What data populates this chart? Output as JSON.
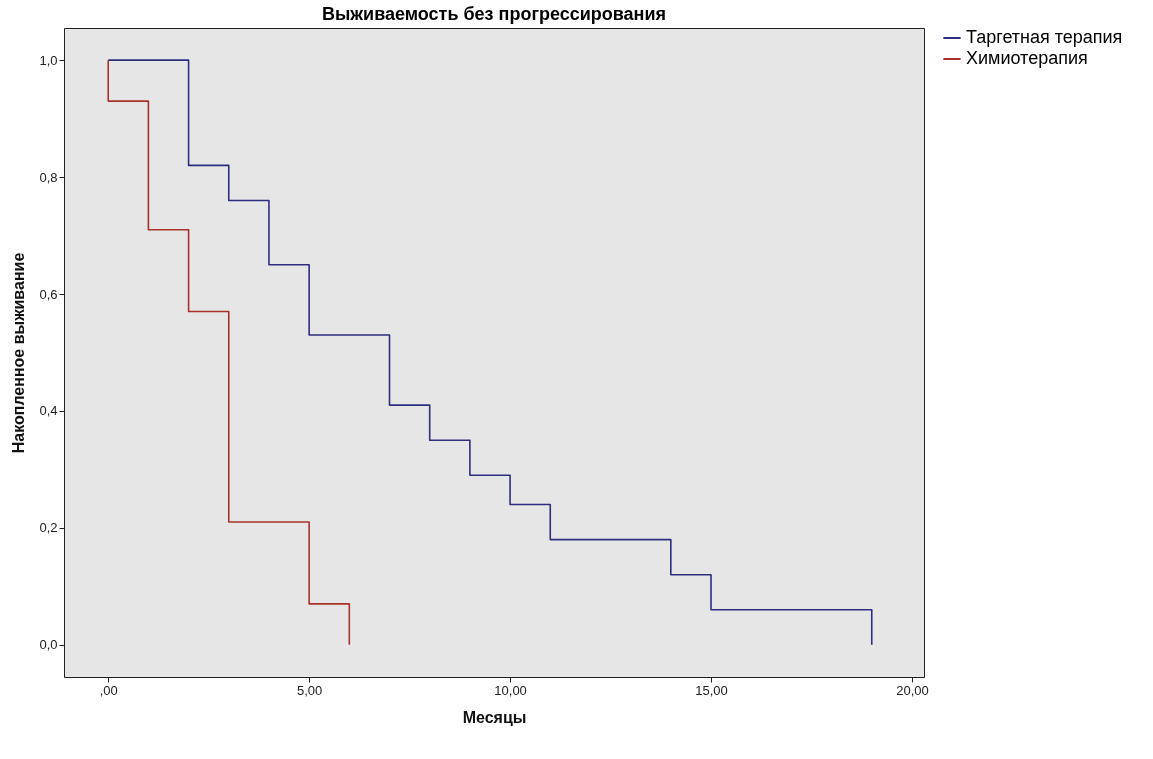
{
  "chart_data": {
    "type": "step",
    "title": "Выживаемость без прогрессирования",
    "xlabel": "Месяцы",
    "ylabel": "Накопленное выживание",
    "xlim": [
      -1.1,
      20.3
    ],
    "ylim": [
      -0.055,
      1.055
    ],
    "xticks": [
      {
        "value": 0,
        "label": ",00"
      },
      {
        "value": 5,
        "label": "5,00"
      },
      {
        "value": 10,
        "label": "10,00"
      },
      {
        "value": 15,
        "label": "15,00"
      },
      {
        "value": 20,
        "label": "20,00"
      }
    ],
    "yticks": [
      {
        "value": 0,
        "label": "0,0"
      },
      {
        "value": 0.2,
        "label": "0,2"
      },
      {
        "value": 0.4,
        "label": "0,4"
      },
      {
        "value": 0.6,
        "label": "0,6"
      },
      {
        "value": 0.8,
        "label": "0,8"
      },
      {
        "value": 1,
        "label": "1,0"
      }
    ],
    "legend": "top right",
    "series": [
      {
        "name": "Таргетная терапия",
        "color": "#2e2e80",
        "x": [
          0,
          2,
          3,
          4,
          5,
          7,
          8,
          9,
          10,
          11,
          14,
          15,
          19
        ],
        "values": [
          1,
          0.82,
          0.76,
          0.65,
          0.53,
          0.41,
          0.35,
          0.29,
          0.24,
          0.18,
          0.12,
          0.06,
          0
        ]
      },
      {
        "name": "Химиотерапия",
        "color": "#a8322a",
        "x": [
          0,
          0,
          1,
          2,
          3,
          5,
          6
        ],
        "values": [
          1,
          0.93,
          0.71,
          0.57,
          0.21,
          0.07,
          0
        ]
      }
    ]
  }
}
